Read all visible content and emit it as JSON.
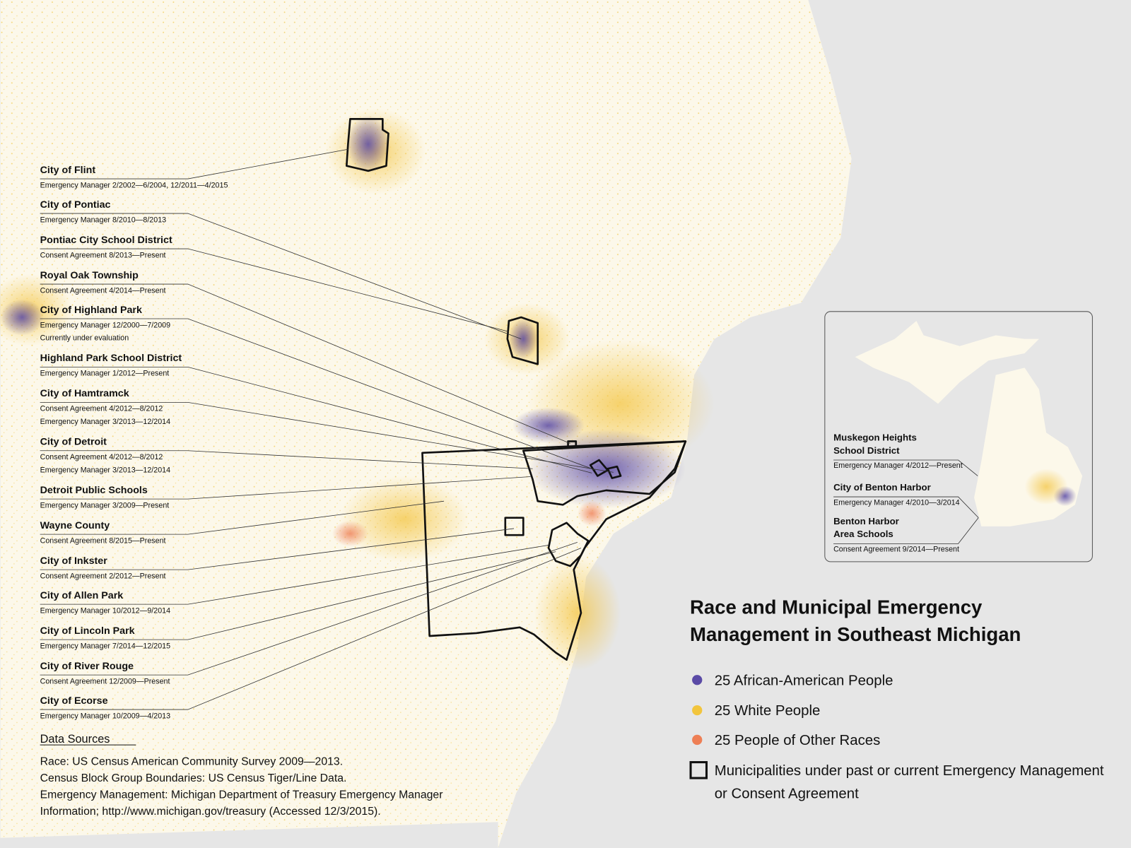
{
  "title": [
    "Race and Municipal Emergency",
    "Management in Southeast Michigan"
  ],
  "legend": [
    {
      "label": [
        "25 African-American People"
      ],
      "color": "#5a4aa6",
      "shape": "dot"
    },
    {
      "label": [
        "25 White People"
      ],
      "color": "#f2c53d",
      "shape": "dot"
    },
    {
      "label": [
        "25 People of Other Races"
      ],
      "color": "#ee7f55",
      "shape": "dot"
    },
    {
      "label": [
        "Municipalities under past or current Emergency Management",
        "or Consent Agreement"
      ],
      "color": "#111111",
      "shape": "square"
    }
  ],
  "annotations": [
    {
      "name": "City of Flint",
      "details": [
        "Emergency Manager 2/2002—6/2004, 12/2011—4/2015"
      ]
    },
    {
      "name": "City of Pontiac",
      "details": [
        "Emergency Manager 8/2010—8/2013"
      ]
    },
    {
      "name": "Pontiac City School District",
      "details": [
        "Consent Agreement 8/2013—Present"
      ]
    },
    {
      "name": "Royal Oak Township",
      "details": [
        "Consent Agreement 4/2014—Present"
      ]
    },
    {
      "name": "City of Highland Park",
      "details": [
        "Emergency Manager 12/2000—7/2009",
        "Currently under evaluation"
      ]
    },
    {
      "name": "Highland Park School District",
      "details": [
        "Emergency Manager 1/2012—Present"
      ]
    },
    {
      "name": "City of Hamtramck",
      "details": [
        "Consent Agreement 4/2012—8/2012",
        "Emergency Manager 3/2013—12/2014"
      ]
    },
    {
      "name": "City of Detroit",
      "details": [
        "Consent Agreement 4/2012—8/2012",
        "Emergency Manager 3/2013—12/2014"
      ]
    },
    {
      "name": "Detroit Public Schools",
      "details": [
        "Emergency Manager 3/2009—Present"
      ]
    },
    {
      "name": "Wayne County",
      "details": [
        "Consent Agreement 8/2015—Present"
      ]
    },
    {
      "name": "City of Inkster",
      "details": [
        "Consent Agreement 2/2012—Present"
      ]
    },
    {
      "name": "City of Allen Park",
      "details": [
        "Emergency Manager 10/2012—9/2014"
      ]
    },
    {
      "name": "City of Lincoln Park",
      "details": [
        "Emergency Manager 7/2014—12/2015"
      ]
    },
    {
      "name": "City of River Rouge",
      "details": [
        "Consent Agreement 12/2009—Present"
      ]
    },
    {
      "name": "City of Ecorse",
      "details": [
        "Emergency Manager 10/2009—4/2013"
      ]
    }
  ],
  "inset": [
    {
      "name": [
        "Muskegon Heights",
        "School District"
      ],
      "details": [
        "Emergency Manager 4/2012—Present"
      ]
    },
    {
      "name": [
        "City of Benton Harbor"
      ],
      "details": [
        "Emergency Manager 4/2010—3/2014"
      ]
    },
    {
      "name": [
        "Benton Harbor",
        "Area Schools"
      ],
      "details": [
        "Consent Agreement 9/2014—Present"
      ]
    }
  ],
  "sources": {
    "heading": "Data Sources",
    "lines": [
      "Race: US Census American Community Survey 2009—2013.",
      "Census Block Group Boundaries: US Census Tiger/Line Data.",
      "Emergency Management: Michigan Department of Treasury Emergency Manager",
      "Information; http://www.michigan.gov/treasury (Accessed 12/3/2015)."
    ]
  }
}
